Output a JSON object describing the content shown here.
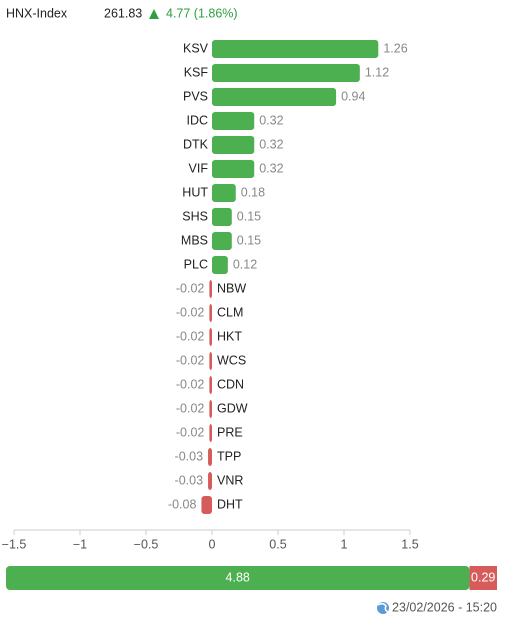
{
  "header": {
    "index_name": "HNX-Index",
    "value": "261.83",
    "change": "4.77 (1.86%)"
  },
  "chart_data": {
    "type": "bar",
    "orientation": "horizontal",
    "categories": [
      "KSV",
      "KSF",
      "PVS",
      "IDC",
      "DTK",
      "VIF",
      "HUT",
      "SHS",
      "MBS",
      "PLC",
      "NBW",
      "CLM",
      "HKT",
      "WCS",
      "CDN",
      "GDW",
      "PRE",
      "TPP",
      "VNR",
      "DHT"
    ],
    "values": [
      1.26,
      1.12,
      0.94,
      0.32,
      0.32,
      0.32,
      0.18,
      0.15,
      0.15,
      0.12,
      -0.02,
      -0.02,
      -0.02,
      -0.02,
      -0.02,
      -0.02,
      -0.02,
      -0.03,
      -0.03,
      -0.08
    ],
    "positive_color": "#4caf50",
    "negative_color": "#d65c5c",
    "xlim": [
      -1.5,
      1.5
    ],
    "xticks": [
      {
        "value": -1.5,
        "label": "−1.5"
      },
      {
        "value": -1,
        "label": "−1"
      },
      {
        "value": -0.5,
        "label": "−0.5"
      },
      0,
      0.5,
      1,
      1.5
    ]
  },
  "summary_bar": {
    "values": [
      4.88,
      0.29
    ],
    "colors": [
      "#4caf50",
      "#d65c5c"
    ]
  },
  "timestamp": "23/02/2026 - 15:20"
}
